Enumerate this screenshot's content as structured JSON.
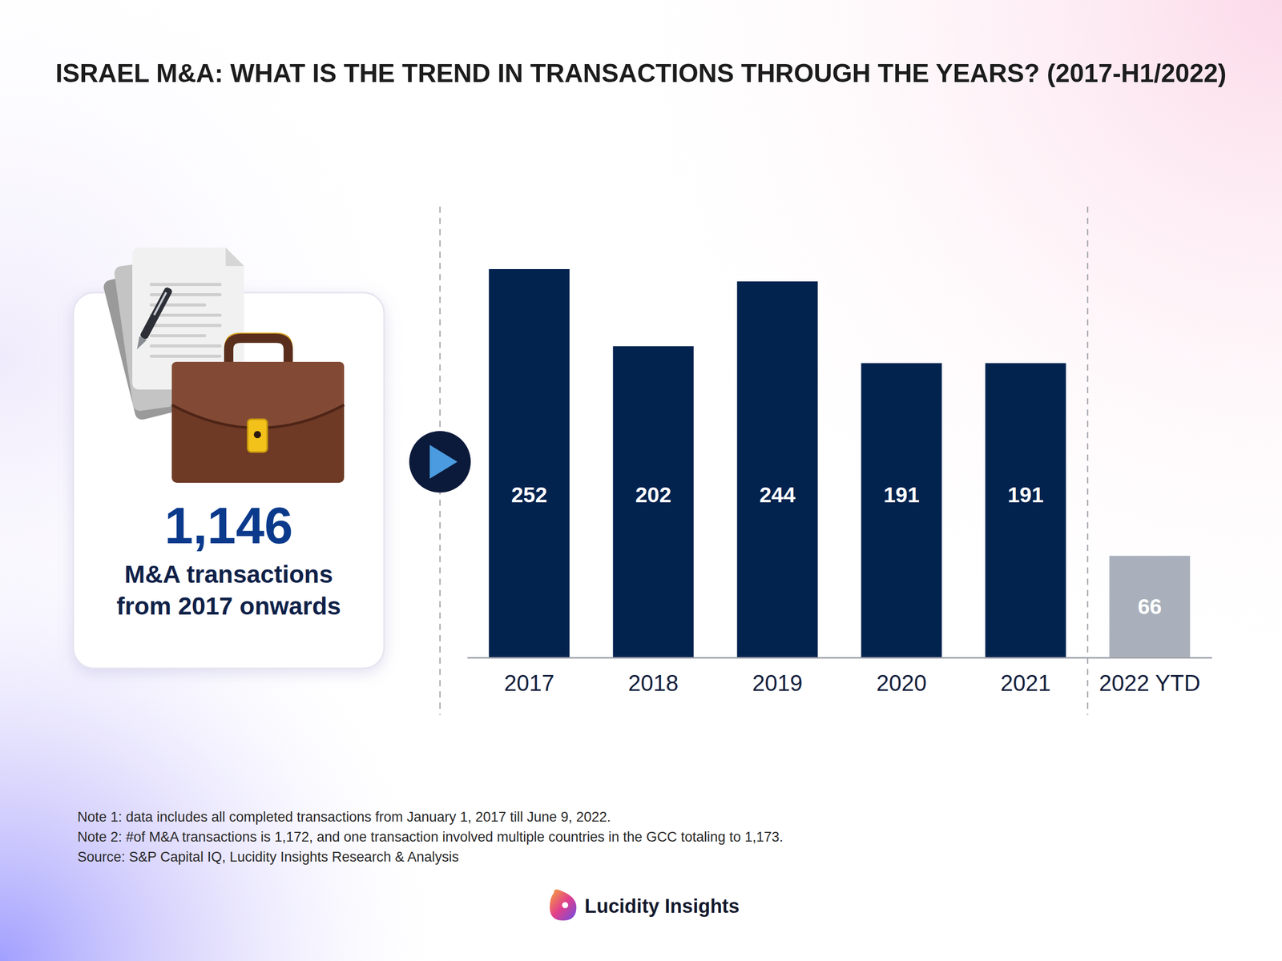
{
  "chart_data": {
    "type": "bar",
    "title": "ISRAEL M&A: WHAT IS THE TREND IN TRANSACTIONS THROUGH THE YEARS? (2017-H1/2022)",
    "categories": [
      "2017",
      "2018",
      "2019",
      "2020",
      "2021",
      "2022 YTD"
    ],
    "values": [
      252,
      202,
      244,
      191,
      191,
      66
    ],
    "colors": [
      "#03234f",
      "#03234f",
      "#03234f",
      "#03234f",
      "#03234f",
      "#a9b0bb"
    ],
    "ylim": [
      0,
      252
    ],
    "data_labels": true,
    "tick_labels": "x"
  },
  "summary": {
    "total": "1,146",
    "text_lines": [
      "M&A transactions",
      "from 2017 onwards"
    ]
  },
  "notes": [
    "Note 1: data includes all completed transactions from January 1, 2017 till June 9, 2022.",
    "Note 2: #of M&A transactions is 1,172, and one transaction involved multiple countries in the GCC totaling to 1,173."
  ],
  "source": "Source: S&P Capital IQ, Lucidity Insights Research & Analysis",
  "brand": "Lucidity Insights"
}
